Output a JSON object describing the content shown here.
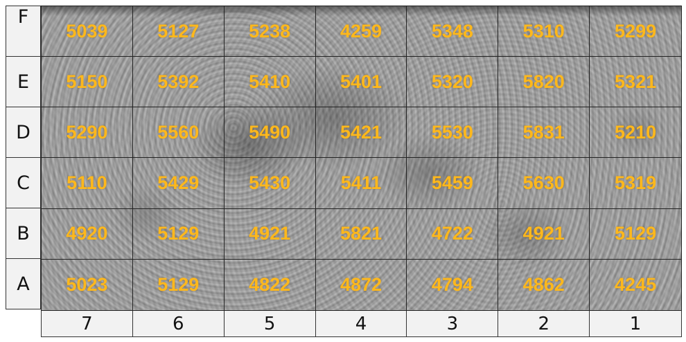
{
  "rows": [
    "F",
    "E",
    "D",
    "C",
    "B",
    "A"
  ],
  "columns": [
    "7",
    "6",
    "5",
    "4",
    "3",
    "2",
    "1"
  ],
  "cells": [
    [
      "5039",
      "5127",
      "5238",
      "4259",
      "5348",
      "5310",
      "5299"
    ],
    [
      "5150",
      "5392",
      "5410",
      "5401",
      "5320",
      "5820",
      "5321"
    ],
    [
      "5290",
      "5560",
      "5490",
      "5421",
      "5530",
      "5831",
      "5210"
    ],
    [
      "5110",
      "5429",
      "5430",
      "5411",
      "5459",
      "5630",
      "5319"
    ],
    [
      "4920",
      "5129",
      "4921",
      "5821",
      "4722",
      "4921",
      "5129"
    ],
    [
      "5023",
      "5129",
      "4822",
      "4872",
      "4794",
      "4862",
      "4245"
    ]
  ],
  "colors": {
    "value_text": "#ffb81c",
    "label_background": "#f2f2f2",
    "grid_line": "#222222"
  }
}
